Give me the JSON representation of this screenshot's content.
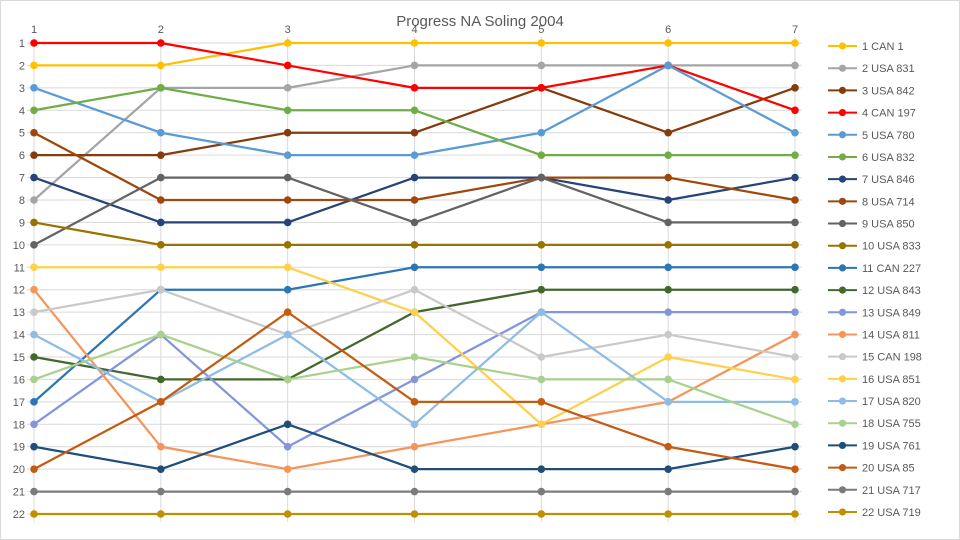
{
  "frame": {
    "background": "#FFFFFF",
    "border_color": "#D9D9D9",
    "grid_color": "#D9D9D9",
    "text_color": "#595959"
  },
  "chart_data": {
    "type": "line",
    "subtype": "bump-rank-chart",
    "title": "Progress NA Soling 2004",
    "x_ticks": [
      "1",
      "2",
      "3",
      "4",
      "5",
      "6",
      "7"
    ],
    "y_ticks": [
      "1",
      "2",
      "3",
      "4",
      "5",
      "6",
      "7",
      "8",
      "9",
      "10",
      "11",
      "12",
      "13",
      "14",
      "15",
      "16",
      "17",
      "18",
      "19",
      "20",
      "21",
      "22"
    ],
    "x_axis_position": "top",
    "y_axis_range": [
      1,
      22
    ],
    "y_inverted": true,
    "grid": true,
    "legend_position": "right",
    "marker": "circle",
    "series": [
      {
        "name": "1 CAN 1",
        "color": "#FFC000",
        "values": [
          2,
          2,
          1,
          1,
          1,
          1,
          1
        ]
      },
      {
        "name": "2 USA 831",
        "color": "#A5A5A5",
        "values": [
          8,
          3,
          3,
          2,
          2,
          2,
          2
        ]
      },
      {
        "name": "3 USA 842",
        "color": "#843C0C",
        "values": [
          6,
          6,
          5,
          5,
          3,
          5,
          3
        ]
      },
      {
        "name": "4 CAN 197",
        "color": "#FF0000",
        "values": [
          1,
          1,
          2,
          3,
          3,
          2,
          4
        ]
      },
      {
        "name": "5 USA 780",
        "color": "#5B9BD5",
        "values": [
          3,
          5,
          6,
          6,
          5,
          2,
          5
        ]
      },
      {
        "name": "6 USA 832",
        "color": "#70AD47",
        "values": [
          4,
          3,
          4,
          4,
          6,
          6,
          6
        ]
      },
      {
        "name": "7 USA 846",
        "color": "#264478",
        "values": [
          7,
          9,
          9,
          7,
          7,
          8,
          7
        ]
      },
      {
        "name": "8 USA 714",
        "color": "#9E480E",
        "values": [
          5,
          8,
          8,
          8,
          7,
          7,
          8
        ]
      },
      {
        "name": "9 USA 850",
        "color": "#636363",
        "values": [
          10,
          7,
          7,
          9,
          7,
          9,
          9
        ]
      },
      {
        "name": "10 USA 833",
        "color": "#997300",
        "values": [
          9,
          10,
          10,
          10,
          10,
          10,
          10
        ]
      },
      {
        "name": "11 CAN 227",
        "color": "#2E75B6",
        "values": [
          17,
          12,
          12,
          11,
          11,
          11,
          11
        ]
      },
      {
        "name": "12 USA 843",
        "color": "#43682B",
        "values": [
          15,
          16,
          16,
          13,
          12,
          12,
          12
        ]
      },
      {
        "name": "13 USA 849",
        "color": "#8496D9",
        "values": [
          18,
          14,
          19,
          16,
          13,
          13,
          13
        ]
      },
      {
        "name": "14 USA 811",
        "color": "#F4965A",
        "values": [
          12,
          19,
          20,
          19,
          18,
          17,
          14
        ]
      },
      {
        "name": "15 CAN 198",
        "color": "#C9C9C9",
        "values": [
          13,
          12,
          14,
          12,
          15,
          14,
          15
        ]
      },
      {
        "name": "16 USA 851",
        "color": "#FFD04A",
        "values": [
          11,
          11,
          11,
          13,
          18,
          15,
          16
        ]
      },
      {
        "name": "17 USA 820",
        "color": "#8FBCE4",
        "values": [
          14,
          17,
          14,
          18,
          13,
          17,
          17
        ]
      },
      {
        "name": "18 USA 755",
        "color": "#A9D18E",
        "values": [
          16,
          14,
          16,
          15,
          16,
          16,
          18
        ]
      },
      {
        "name": "19 USA 761",
        "color": "#1F4E79",
        "values": [
          19,
          20,
          18,
          20,
          20,
          20,
          19
        ]
      },
      {
        "name": "20 USA 85",
        "color": "#C55A11",
        "values": [
          20,
          17,
          13,
          17,
          17,
          19,
          20
        ]
      },
      {
        "name": "21 USA 717",
        "color": "#7B7B7B",
        "values": [
          21,
          21,
          21,
          21,
          21,
          21,
          21
        ]
      },
      {
        "name": "22 USA 719",
        "color": "#BF9000",
        "values": [
          22,
          22,
          22,
          22,
          22,
          22,
          22
        ]
      }
    ]
  }
}
